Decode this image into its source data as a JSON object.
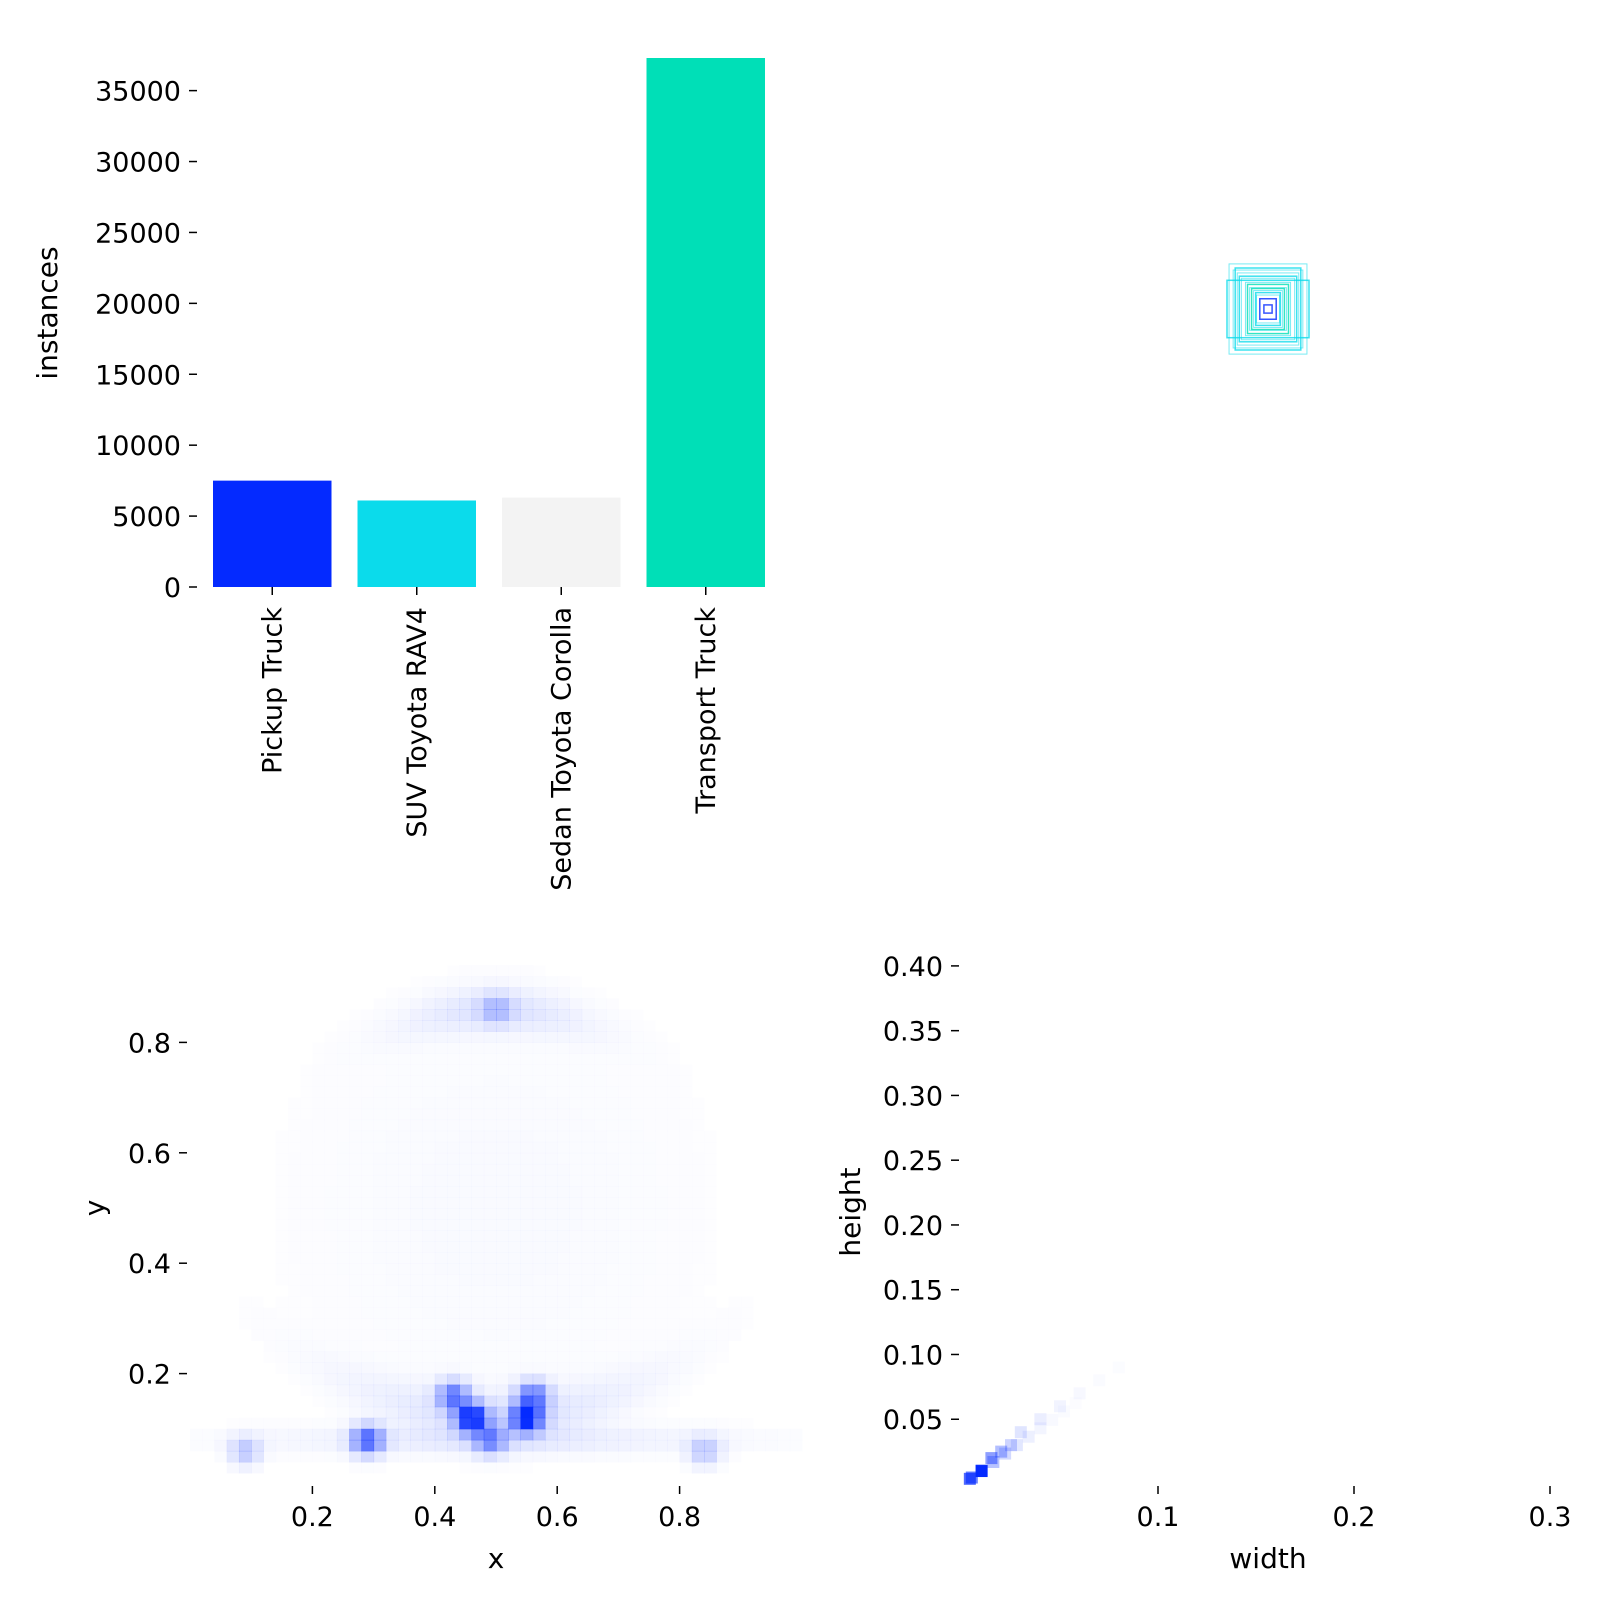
{
  "chart_data": [
    {
      "type": "bar",
      "categories": [
        "Pickup Truck",
        "SUV Toyota RAV4",
        "Sedan Toyota Corolla",
        "Transport Truck"
      ],
      "values": [
        7500,
        6100,
        6300,
        37300
      ],
      "colors": [
        "#042aff",
        "#0bdbeb",
        "#f3f3f3",
        "#00dfb7"
      ],
      "ylabel": "instances",
      "xlabel": "",
      "ylim": [
        0,
        37300
      ],
      "yticks": [
        0,
        5000,
        10000,
        15000,
        20000,
        25000,
        30000,
        35000
      ],
      "yticklabels": [
        "0",
        "5000",
        "10000",
        "15000",
        "20000",
        "25000",
        "30000",
        "35000"
      ],
      "grid": false
    },
    {
      "type": "box_overlay",
      "description_colors": [
        "#00dfb7",
        "#0bdbeb",
        "#042aff"
      ],
      "box_sizes": [
        {
          "w": 0.08,
          "h": 0.1,
          "color": "#0bdbeb"
        },
        {
          "w": 0.1,
          "h": 0.07,
          "color": "#0bdbeb"
        },
        {
          "w": 0.07,
          "h": 0.08,
          "color": "#0bdbeb"
        },
        {
          "w": 0.05,
          "h": 0.06,
          "color": "#00dfb7"
        },
        {
          "w": 0.04,
          "h": 0.05,
          "color": "#00dfb7"
        },
        {
          "w": 0.03,
          "h": 0.04,
          "color": "#0bdbeb"
        },
        {
          "w": 0.02,
          "h": 0.025,
          "color": "#042aff"
        },
        {
          "w": 0.01,
          "h": 0.01,
          "color": "#042aff"
        }
      ]
    },
    {
      "type": "heatmap",
      "xlabel": "x",
      "ylabel": "y",
      "xlim": [
        0,
        1
      ],
      "ylim": [
        0,
        1
      ],
      "xticks": [
        0.2,
        0.4,
        0.6,
        0.8
      ],
      "xticklabels": [
        "0.2",
        "0.4",
        "0.6",
        "0.8"
      ],
      "yticks": [
        0.2,
        0.4,
        0.6,
        0.8
      ],
      "yticklabels": [
        "0.2",
        "0.4",
        "0.6",
        "0.8"
      ],
      "color": "#042aff",
      "hotspots": [
        {
          "x": 0.46,
          "y": 0.12,
          "v": 1.0
        },
        {
          "x": 0.55,
          "y": 0.12,
          "v": 1.0
        },
        {
          "x": 0.43,
          "y": 0.16,
          "v": 0.6
        },
        {
          "x": 0.56,
          "y": 0.16,
          "v": 0.6
        },
        {
          "x": 0.29,
          "y": 0.08,
          "v": 0.7
        },
        {
          "x": 0.49,
          "y": 0.08,
          "v": 0.5
        },
        {
          "x": 0.5,
          "y": 0.86,
          "v": 0.25
        },
        {
          "x": 0.84,
          "y": 0.06,
          "v": 0.25
        },
        {
          "x": 0.09,
          "y": 0.06,
          "v": 0.25
        }
      ]
    },
    {
      "type": "heatmap",
      "xlabel": "width",
      "ylabel": "height",
      "xlim": [
        0,
        0.3
      ],
      "ylim": [
        0,
        0.42
      ],
      "xticks": [
        0.1,
        0.2,
        0.3
      ],
      "xticklabels": [
        "0.1",
        "0.2",
        "0.3"
      ],
      "yticks": [
        0.05,
        0.1,
        0.15,
        0.2,
        0.25,
        0.3,
        0.35,
        0.4
      ],
      "yticklabels": [
        "0.05",
        "0.10",
        "0.15",
        "0.20",
        "0.25",
        "0.30",
        "0.35",
        "0.40"
      ],
      "color": "#042aff",
      "cells": [
        {
          "w": 0.01,
          "h": 0.01,
          "v": 1.0
        },
        {
          "w": 0.005,
          "h": 0.005,
          "v": 0.6
        },
        {
          "w": 0.015,
          "h": 0.02,
          "v": 0.45
        },
        {
          "w": 0.02,
          "h": 0.025,
          "v": 0.3
        },
        {
          "w": 0.025,
          "h": 0.03,
          "v": 0.2
        },
        {
          "w": 0.03,
          "h": 0.04,
          "v": 0.12
        },
        {
          "w": 0.04,
          "h": 0.05,
          "v": 0.08
        },
        {
          "w": 0.05,
          "h": 0.06,
          "v": 0.05
        },
        {
          "w": 0.06,
          "h": 0.07,
          "v": 0.03
        },
        {
          "w": 0.07,
          "h": 0.08,
          "v": 0.02
        },
        {
          "w": 0.08,
          "h": 0.09,
          "v": 0.015
        }
      ]
    }
  ]
}
